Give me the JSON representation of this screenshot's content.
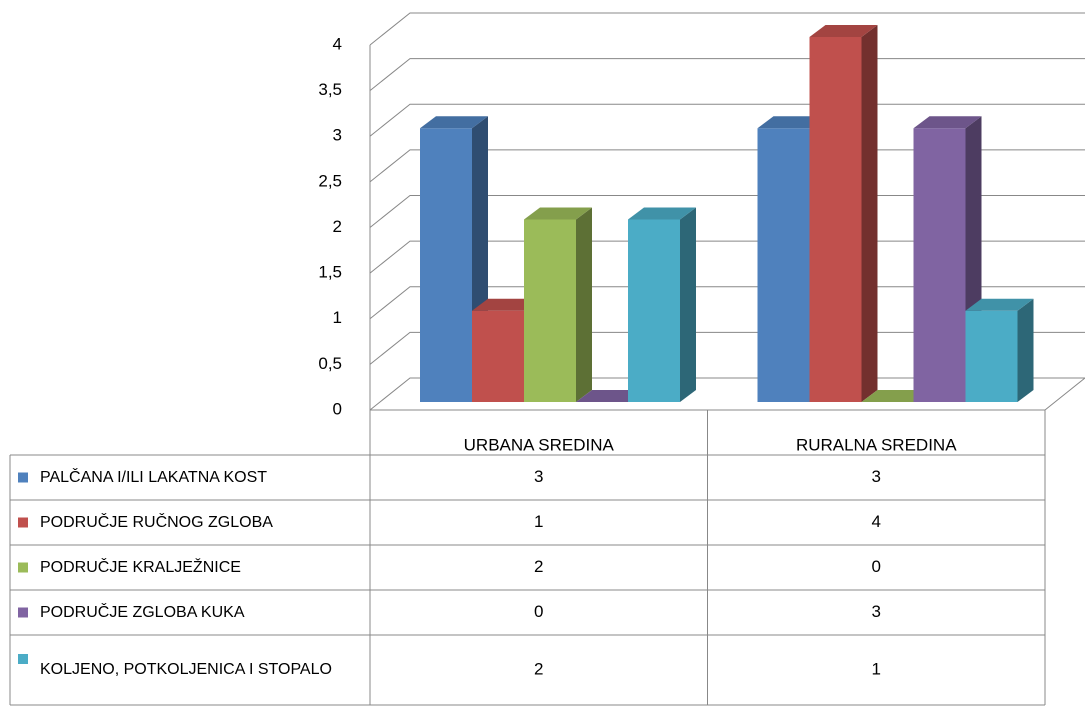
{
  "chart_data": {
    "type": "bar3d",
    "categories": [
      "URBANA SREDINA",
      "RURALNA SREDINA"
    ],
    "series": [
      {
        "name": "PALČANA I/ILI LAKATNA KOST",
        "color": "#4F81BD",
        "values": [
          3,
          3
        ]
      },
      {
        "name": "PODRUČJE RUČNOG ZGLOBA",
        "color": "#C0504D",
        "values": [
          1,
          4
        ]
      },
      {
        "name": "PODRUČJE KRALJEŽNICE",
        "color": "#9BBB59",
        "values": [
          2,
          0
        ]
      },
      {
        "name": "PODRUČJE ZGLOBA KUKA",
        "color": "#8064A2",
        "values": [
          0,
          3
        ]
      },
      {
        "name": "KOLJENO, POTKOLJENICA I STOPALO",
        "color": "#4BACC6",
        "values": [
          2,
          1
        ]
      }
    ],
    "ylim": [
      0,
      4
    ],
    "yticks": [
      0,
      {
        "value": 0.5,
        "label": "0,5"
      },
      1,
      {
        "value": 1.5,
        "label": "1,5"
      },
      2,
      {
        "value": 2.5,
        "label": "2,5"
      },
      3,
      {
        "value": 3.5,
        "label": "3,5"
      },
      4
    ],
    "grid": true,
    "data_table": true
  }
}
